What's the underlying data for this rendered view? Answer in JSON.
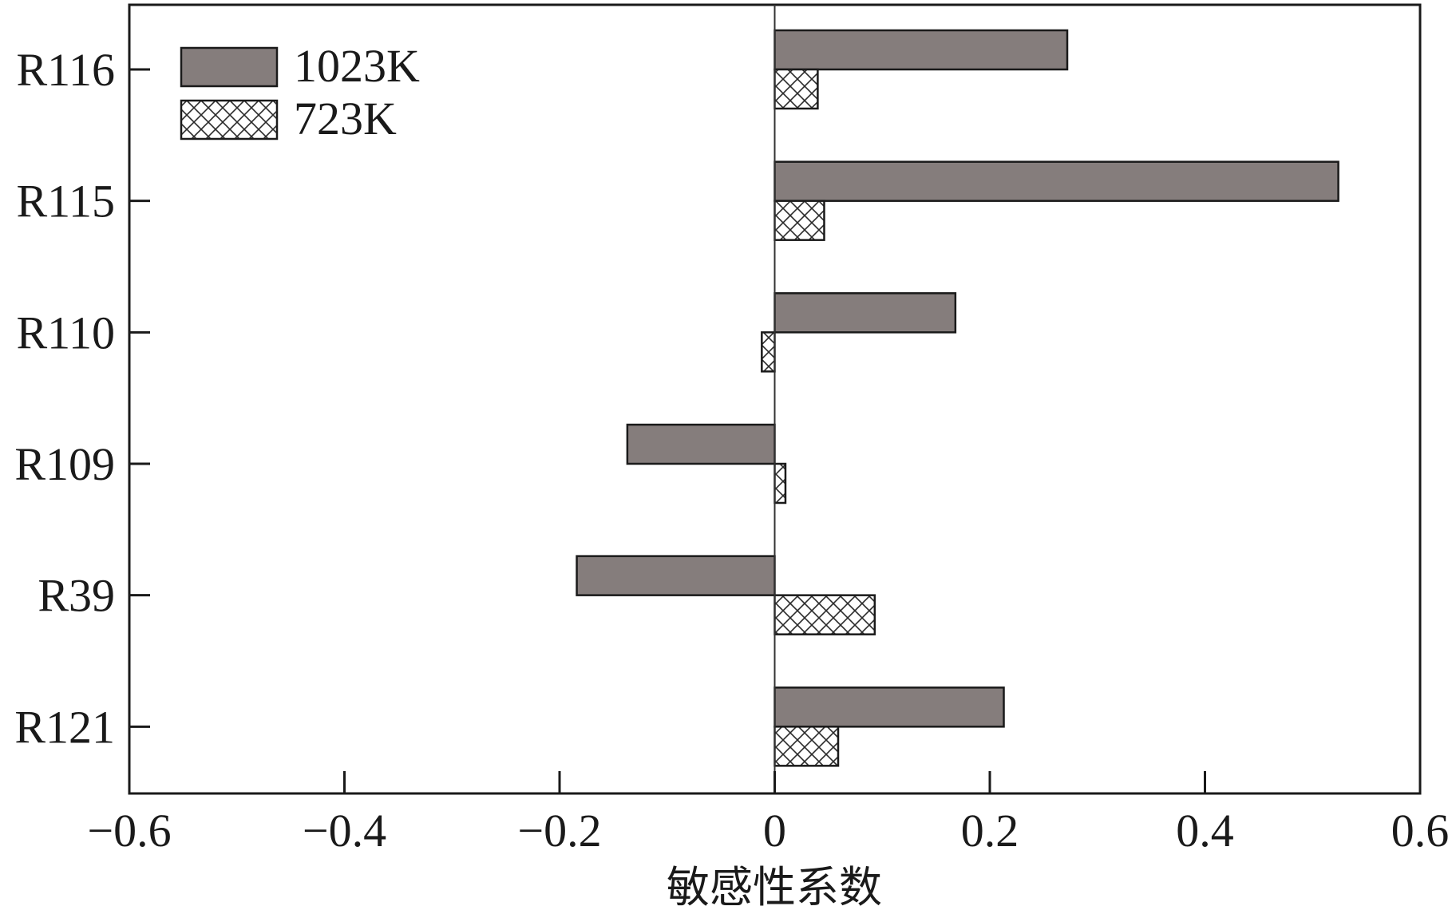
{
  "chart_data": {
    "type": "bar",
    "orientation": "horizontal",
    "categories": [
      "R116",
      "R115",
      "R110",
      "R109",
      "R39",
      "R121"
    ],
    "series": [
      {
        "name": "1023K",
        "values": [
          0.272,
          0.524,
          0.168,
          -0.137,
          -0.184,
          0.213
        ],
        "color": "#857d7c",
        "fill": "solid"
      },
      {
        "name": "723K",
        "values": [
          0.04,
          0.046,
          -0.012,
          0.01,
          0.093,
          0.059
        ],
        "color": "#ffffff",
        "fill": "crosshatch"
      }
    ],
    "xlabel": "敏感性系数",
    "ylabel": "",
    "title": "",
    "xlim": [
      -0.6,
      0.6
    ],
    "xticks": [
      -0.6,
      -0.4,
      -0.2,
      0,
      0.2,
      0.4,
      0.6
    ],
    "xtick_labels": [
      "−0.6",
      "−0.4",
      "−0.2",
      "0",
      "0.2",
      "0.4",
      "0.6"
    ],
    "grid": false,
    "legend_position": "top-left"
  }
}
